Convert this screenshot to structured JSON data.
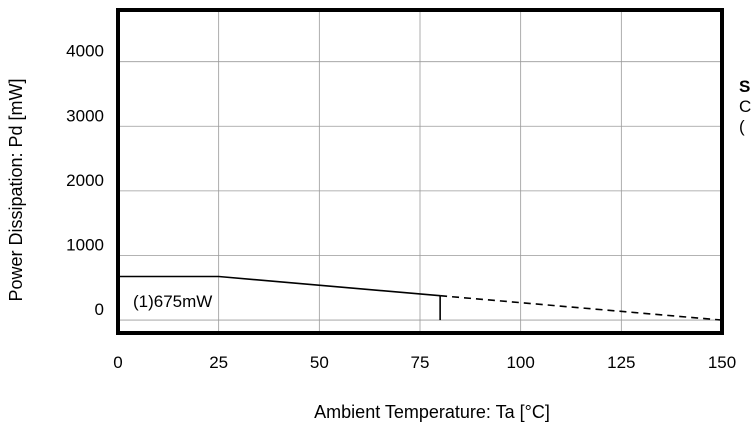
{
  "chart_data": {
    "type": "line",
    "title": "",
    "xlabel": "Ambient Temperature: Ta [°C]",
    "ylabel": "Power Dissipation: Pd [mW]",
    "xlim": [
      0,
      150
    ],
    "ylim": [
      -200,
      4800
    ],
    "grid": true,
    "x_ticks": [
      0,
      25,
      50,
      75,
      100,
      125,
      150
    ],
    "x_tick_labels": [
      "0",
      "25",
      "50",
      "75",
      "100",
      "125",
      "150"
    ],
    "y_ticks": [
      0,
      1000,
      2000,
      3000,
      4000
    ],
    "y_tick_labels": [
      "0",
      "1000",
      "2000",
      "3000",
      "4000"
    ],
    "series": [
      {
        "name": "(1)",
        "style": "solid",
        "color": "#000000",
        "x": [
          0,
          25,
          80
        ],
        "y": [
          675,
          675,
          378
        ]
      },
      {
        "style": "dashed",
        "color": "#000000",
        "x": [
          80,
          150
        ],
        "y": [
          378,
          0
        ]
      }
    ],
    "vertical_markers": [
      {
        "x": 80,
        "y_from": 0,
        "y_to": 378
      }
    ],
    "annotations": [
      {
        "text": "(1)675mW",
        "x": 2,
        "y": 300
      }
    ]
  },
  "side_panel": {
    "title": "S",
    "lines": [
      "C",
      "("
    ]
  }
}
